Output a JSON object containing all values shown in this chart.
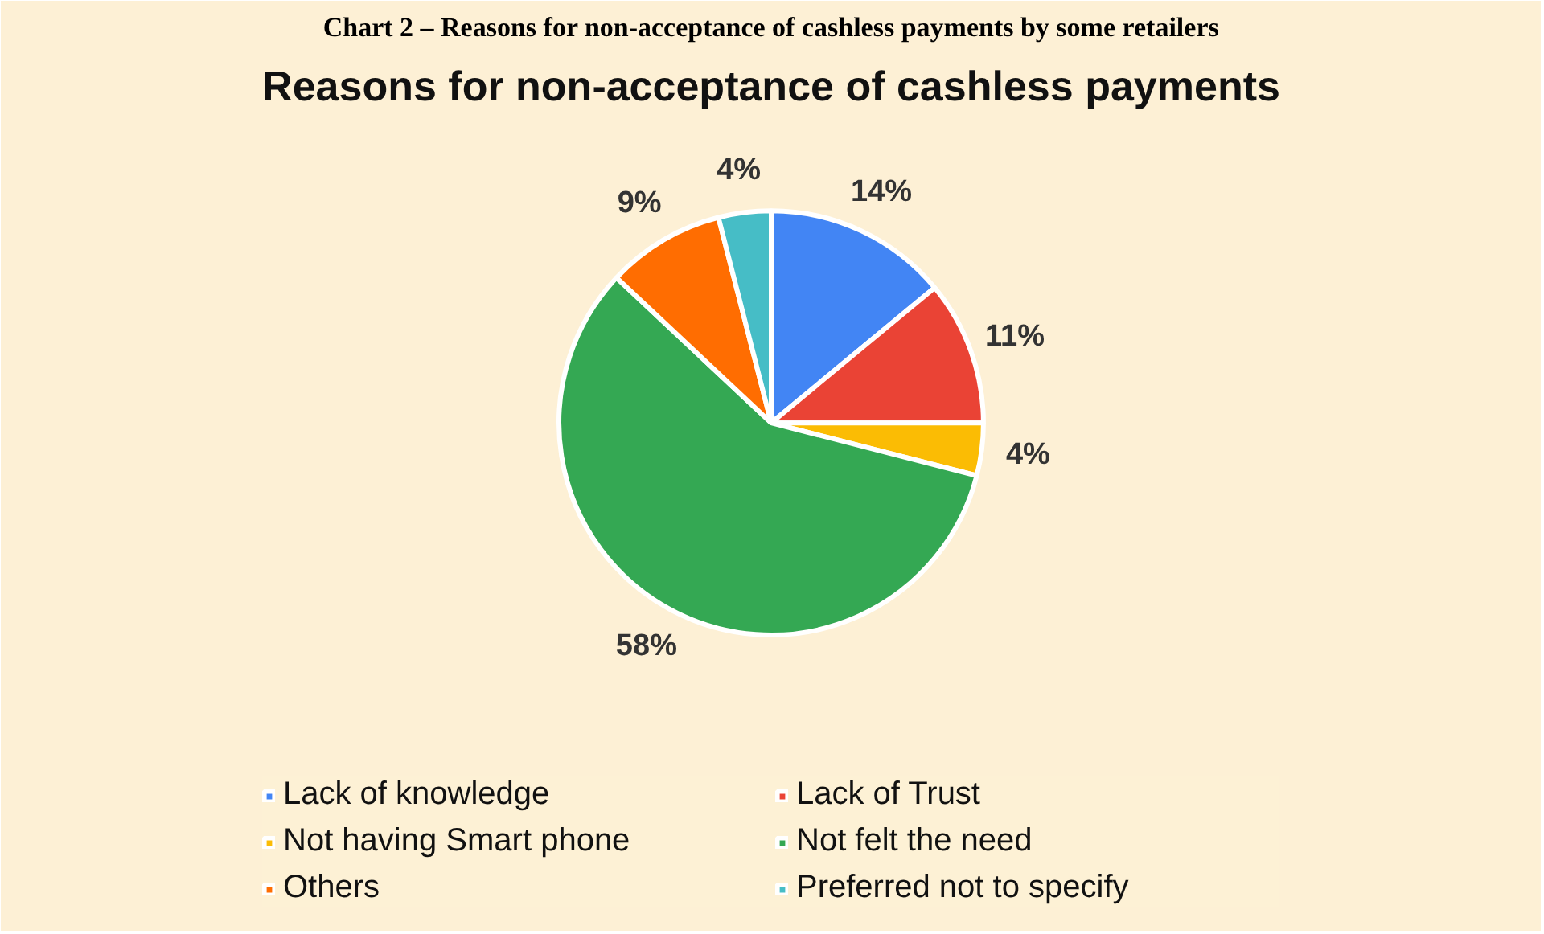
{
  "chart_data": {
    "type": "pie",
    "title": "Reasons for non-acceptance of cashless payments",
    "annotations": [
      "Chart 2 – Reasons for non-acceptance of cashless payments by some retailers"
    ],
    "categories": [
      "Lack of knowledge",
      "Lack of Trust",
      "Not having Smart phone",
      "Not felt the need",
      "Others",
      "Preferred not to specify"
    ],
    "values": [
      14,
      11,
      4,
      58,
      9,
      4
    ],
    "value_labels": [
      "14%",
      "11%",
      "4%",
      "58%",
      "9%",
      "4%"
    ],
    "colors": [
      "#4285f4",
      "#ea4335",
      "#fbbc04",
      "#34a853",
      "#ff6d01",
      "#46bdc6"
    ],
    "legend": "bottom"
  }
}
